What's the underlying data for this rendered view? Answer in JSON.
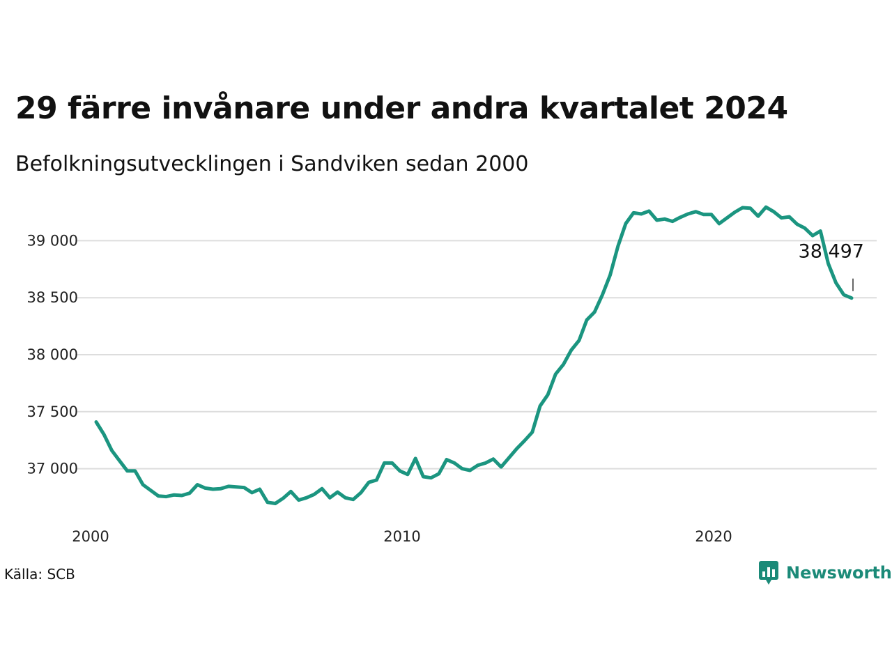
{
  "title": "29 färre invånare under andra kvartalet 2024",
  "subtitle": "Befolkningsutvecklingen i Sandviken sedan 2000",
  "source": "Källa: SCB",
  "logo": {
    "text": "Newsworthy",
    "icon": "bar-chart-speech-bubble-icon",
    "color": "#1b8a78"
  },
  "chart_data": {
    "type": "line",
    "series": [
      {
        "color": "#1b9580",
        "x": [
          2000.0,
          2000.25,
          2000.5,
          2000.75,
          2001.0,
          2001.25,
          2001.5,
          2001.75,
          2002.0,
          2002.25,
          2002.5,
          2002.75,
          2003.0,
          2003.25,
          2003.5,
          2003.75,
          2004.0,
          2004.25,
          2004.5,
          2004.75,
          2005.0,
          2005.25,
          2005.5,
          2005.75,
          2006.0,
          2006.25,
          2006.5,
          2006.75,
          2007.0,
          2007.25,
          2007.5,
          2007.75,
          2008.0,
          2008.25,
          2008.5,
          2008.75,
          2009.0,
          2009.25,
          2009.5,
          2009.75,
          2010.0,
          2010.25,
          2010.5,
          2010.75,
          2011.0,
          2011.25,
          2011.5,
          2011.75,
          2012.0,
          2012.25,
          2012.5,
          2012.75,
          2013.0,
          2013.25,
          2013.5,
          2013.75,
          2014.0,
          2014.25,
          2014.5,
          2014.75,
          2015.0,
          2015.25,
          2015.5,
          2015.75,
          2016.0,
          2016.25,
          2016.5,
          2016.75,
          2017.0,
          2017.25,
          2017.5,
          2017.75,
          2018.0,
          2018.25,
          2018.5,
          2018.75,
          2019.0,
          2019.25,
          2019.5,
          2019.75,
          2020.0,
          2020.25,
          2020.5,
          2020.75,
          2021.0,
          2021.25,
          2021.5,
          2021.75,
          2022.0,
          2022.25,
          2022.5,
          2022.75,
          2023.0,
          2023.25,
          2023.5,
          2023.75,
          2024.0,
          2024.25
        ],
        "y": [
          37410,
          37300,
          37160,
          37070,
          36980,
          36980,
          36860,
          36810,
          36760,
          36755,
          36770,
          36765,
          36785,
          36860,
          36830,
          36820,
          36825,
          36845,
          36840,
          36835,
          36790,
          36820,
          36705,
          36695,
          36740,
          36800,
          36725,
          36745,
          36775,
          36825,
          36745,
          36795,
          36745,
          36730,
          36790,
          36880,
          36900,
          37050,
          37050,
          36980,
          36950,
          37090,
          36930,
          36920,
          36955,
          37080,
          37050,
          37000,
          36985,
          37030,
          37050,
          37085,
          37015,
          37095,
          37175,
          37245,
          37320,
          37550,
          37650,
          37830,
          37915,
          38040,
          38125,
          38305,
          38375,
          38525,
          38700,
          38950,
          39150,
          39245,
          39235,
          39260,
          39180,
          39190,
          39170,
          39205,
          39235,
          39255,
          39230,
          39230,
          39150,
          39200,
          39250,
          39290,
          39285,
          39215,
          39295,
          39255,
          39200,
          39210,
          39145,
          39110,
          39045,
          39085,
          38800,
          38630,
          38526,
          38497
        ]
      }
    ],
    "end_label": "38 497",
    "y_ticks": [
      37000,
      37500,
      38000,
      38500,
      39000
    ],
    "y_tick_labels": [
      "37 000",
      "37 500",
      "38 000",
      "38 500",
      "39 000"
    ],
    "x_ticks": [
      2000,
      2010,
      2020
    ],
    "x_tick_labels": [
      "2000",
      "2010",
      "2020"
    ],
    "xlim": [
      2000,
      2024.25
    ],
    "ylim": [
      36600,
      39400
    ],
    "grid": "horizontal",
    "xlabel": "",
    "ylabel": ""
  }
}
